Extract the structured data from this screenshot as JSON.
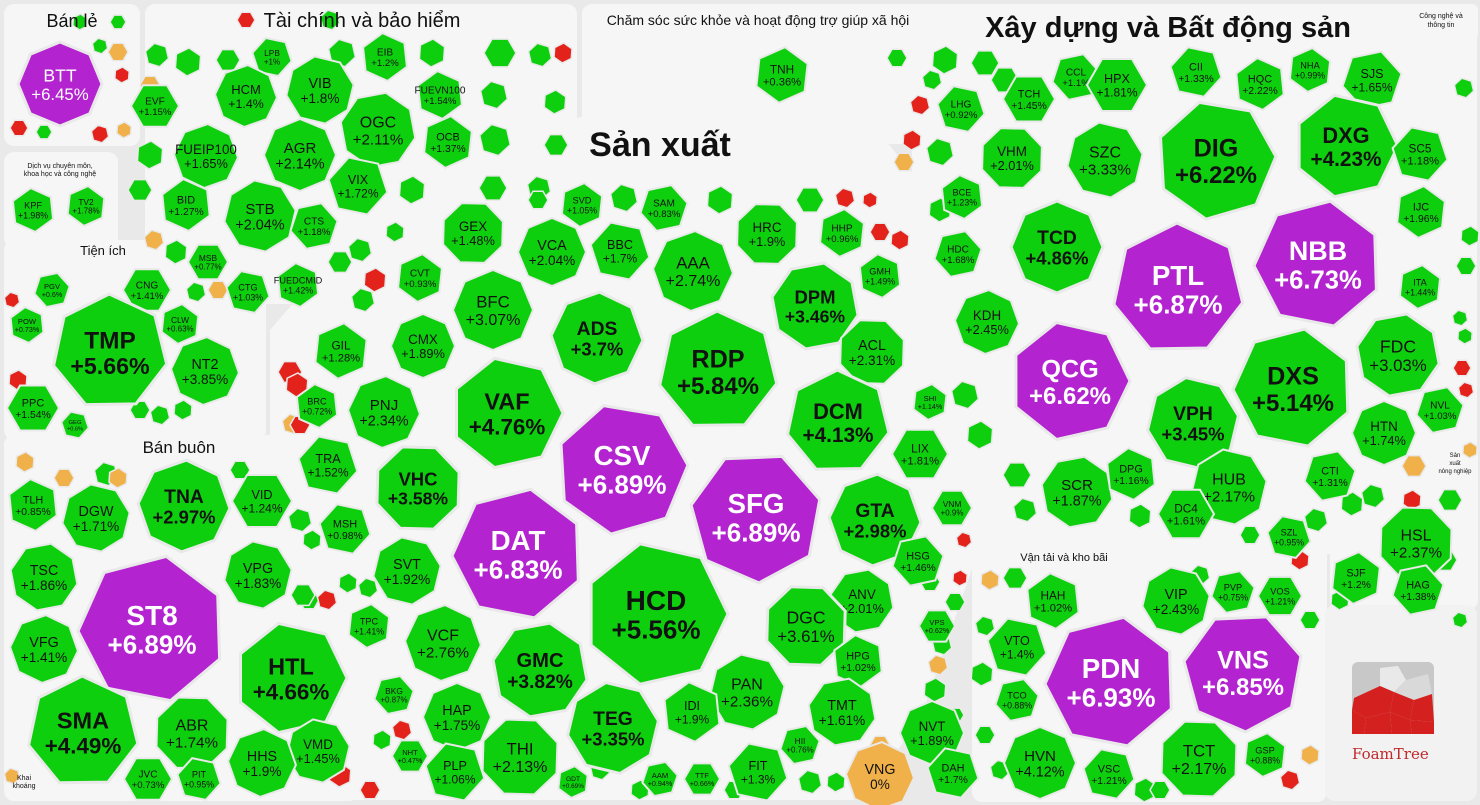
{
  "colors": {
    "up": "#0ecf0e",
    "up_light": "#19d41a",
    "ceiling": "#b323d0",
    "down": "#e3231b",
    "ref": "#f0b04a",
    "border": "#e9e9e9",
    "panel": "#f6f6f6"
  },
  "logo": {
    "text": "FoamTree"
  },
  "chart_data": {
    "type": "treemap",
    "sectors": [
      {
        "name": "Bán lẻ",
        "stocks": [
          {
            "t": "BTT",
            "v": 6.45
          }
        ]
      },
      {
        "name": "Tài chính và bảo hiểm",
        "stocks": [
          {
            "t": "LPB",
            "v": 1
          },
          {
            "t": "EIB",
            "v": 1.2
          },
          {
            "t": "VIB",
            "v": 1.8
          },
          {
            "t": "HCM",
            "v": 1.4
          },
          {
            "t": "EVF",
            "v": 1.15
          },
          {
            "t": "OGC",
            "v": 2.11
          },
          {
            "t": "FUEVN100",
            "v": 1.54
          },
          {
            "t": "OCB",
            "v": 1.37
          },
          {
            "t": "FUEIP100",
            "v": 1.65
          },
          {
            "t": "AGR",
            "v": 2.14
          },
          {
            "t": "VIX",
            "v": 1.72
          },
          {
            "t": "BID",
            "v": 1.27
          },
          {
            "t": "STB",
            "v": 2.04
          },
          {
            "t": "CTS",
            "v": 1.18
          },
          {
            "t": "MSB",
            "v": 0.77
          },
          {
            "t": "CTG",
            "v": 1.03
          },
          {
            "t": "FUEDCMID",
            "v": 1.42
          }
        ]
      },
      {
        "name": "Chăm sóc sức khỏe và hoạt động trợ giúp xã hội",
        "stocks": [
          {
            "t": "TNH",
            "v": 0.36
          }
        ]
      },
      {
        "name": "Xây dựng và Bất động sản",
        "stocks": [
          {
            "t": "CCL",
            "v": 1.1
          },
          {
            "t": "HPX",
            "v": 1.81
          },
          {
            "t": "CII",
            "v": 1.33
          },
          {
            "t": "HQC",
            "v": 2.22
          },
          {
            "t": "NHA",
            "v": 0.99
          },
          {
            "t": "SJS",
            "v": 1.65
          },
          {
            "t": "TCH",
            "v": 1.45
          },
          {
            "t": "LHG",
            "v": 0.92
          },
          {
            "t": "VHM",
            "v": 2.01
          },
          {
            "t": "SZC",
            "v": 3.33
          },
          {
            "t": "DIG",
            "v": 6.22
          },
          {
            "t": "DXG",
            "v": 4.23
          },
          {
            "t": "SC5",
            "v": 1.18
          },
          {
            "t": "BCE",
            "v": 1.23
          },
          {
            "t": "IJC",
            "v": 1.96
          },
          {
            "t": "HDC",
            "v": 1.68
          },
          {
            "t": "TCD",
            "v": 4.86
          },
          {
            "t": "PTL",
            "v": 6.87
          },
          {
            "t": "NBB",
            "v": 6.73
          },
          {
            "t": "ITA",
            "v": 1.44
          },
          {
            "t": "KDH",
            "v": 2.45
          },
          {
            "t": "QCG",
            "v": 6.62
          },
          {
            "t": "FDC",
            "v": 3.03
          },
          {
            "t": "DXS",
            "v": 5.14
          },
          {
            "t": "VPH",
            "v": 3.45
          },
          {
            "t": "NVL",
            "v": 1.03
          },
          {
            "t": "HTN",
            "v": 1.74
          },
          {
            "t": "SCR",
            "v": 1.87
          },
          {
            "t": "DPG",
            "v": 1.16
          },
          {
            "t": "HUB",
            "v": 2.17
          },
          {
            "t": "CTI",
            "v": 1.31
          },
          {
            "t": "DC4",
            "v": 1.61
          },
          {
            "t": "SZL",
            "v": 0.95
          }
        ]
      },
      {
        "name": "Sản xuất",
        "stocks": [
          {
            "t": "GEX",
            "v": 1.48
          },
          {
            "t": "SVD",
            "v": 1.05
          },
          {
            "t": "SAM",
            "v": 0.83
          },
          {
            "t": "VCA",
            "v": 2.04
          },
          {
            "t": "BBC",
            "v": 1.7
          },
          {
            "t": "HRC",
            "v": 1.9
          },
          {
            "t": "HHP",
            "v": 0.96
          },
          {
            "t": "AAA",
            "v": 2.74
          },
          {
            "t": "BFC",
            "v": 3.07
          },
          {
            "t": "DPM",
            "v": 3.46
          },
          {
            "t": "GMH",
            "v": 1.49
          },
          {
            "t": "CVT",
            "v": 0.93
          },
          {
            "t": "ADS",
            "v": 3.7
          },
          {
            "t": "CMX",
            "v": 1.89
          },
          {
            "t": "RDP",
            "v": 5.84
          },
          {
            "t": "ACL",
            "v": 2.31
          },
          {
            "t": "GIL",
            "v": 1.28
          },
          {
            "t": "PNJ",
            "v": 2.34
          },
          {
            "t": "VAF",
            "v": 4.76
          },
          {
            "t": "DCM",
            "v": 4.13
          },
          {
            "t": "BRC",
            "v": 0.72
          },
          {
            "t": "SHI",
            "v": 1.14
          },
          {
            "t": "CSV",
            "v": 6.89
          },
          {
            "t": "LIX",
            "v": 1.81
          },
          {
            "t": "TRA",
            "v": 1.52
          },
          {
            "t": "VHC",
            "v": 3.58
          },
          {
            "t": "SFG",
            "v": 6.89
          },
          {
            "t": "GTA",
            "v": 2.98
          },
          {
            "t": "VNM",
            "v": 0.9
          },
          {
            "t": "MSH",
            "v": 0.98
          },
          {
            "t": "DAT",
            "v": 6.83
          },
          {
            "t": "SVT",
            "v": 1.92
          },
          {
            "t": "HSG",
            "v": 1.46
          },
          {
            "t": "HCD",
            "v": 5.56
          },
          {
            "t": "ANV",
            "v": 2.01
          },
          {
            "t": "DGC",
            "v": 3.61
          },
          {
            "t": "TPC",
            "v": 1.41
          },
          {
            "t": "VCF",
            "v": 2.76
          },
          {
            "t": "VPS",
            "v": 0.62
          },
          {
            "t": "GMC",
            "v": 3.82
          },
          {
            "t": "HPG",
            "v": 1.02
          },
          {
            "t": "PAN",
            "v": 2.36
          },
          {
            "t": "BKG",
            "v": 0.87
          },
          {
            "t": "HAP",
            "v": 1.75
          },
          {
            "t": "TMT",
            "v": 1.61
          },
          {
            "t": "IDI",
            "v": 1.9
          },
          {
            "t": "TEG",
            "v": 3.35
          },
          {
            "t": "HII",
            "v": 0.76
          },
          {
            "t": "NHT",
            "v": 0.47
          },
          {
            "t": "PLP",
            "v": 1.06
          },
          {
            "t": "THI",
            "v": 2.13
          },
          {
            "t": "GDT",
            "v": 0.69
          },
          {
            "t": "AAM",
            "v": 0.94
          },
          {
            "t": "TTF",
            "v": 0.66
          },
          {
            "t": "FIT",
            "v": 1.3
          }
        ]
      },
      {
        "name": "Dịch vụ chuyên môn, khoa học và công nghệ",
        "stocks": [
          {
            "t": "KPF",
            "v": 1.98
          },
          {
            "t": "TV2",
            "v": 1.78
          }
        ]
      },
      {
        "name": "Tiện ích",
        "stocks": [
          {
            "t": "PGV",
            "v": 0.6
          },
          {
            "t": "CNG",
            "v": 1.41
          },
          {
            "t": "TMP",
            "v": 5.66
          },
          {
            "t": "POW",
            "v": 0.73
          },
          {
            "t": "CLW",
            "v": 0.63
          },
          {
            "t": "NT2",
            "v": 3.85
          },
          {
            "t": "PPC",
            "v": 1.54
          },
          {
            "t": "GEG",
            "v": 0.6
          }
        ]
      },
      {
        "name": "Bán buôn",
        "stocks": [
          {
            "t": "TLH",
            "v": 0.85
          },
          {
            "t": "DGW",
            "v": 1.71
          },
          {
            "t": "TNA",
            "v": 2.97
          },
          {
            "t": "VID",
            "v": 1.24
          },
          {
            "t": "TSC",
            "v": 1.86
          },
          {
            "t": "ST8",
            "v": 6.89
          },
          {
            "t": "VPG",
            "v": 1.83
          },
          {
            "t": "VFG",
            "v": 1.41
          },
          {
            "t": "HTL",
            "v": 4.66
          },
          {
            "t": "SMA",
            "v": 4.49
          },
          {
            "t": "ABR",
            "v": 1.74
          },
          {
            "t": "VMD",
            "v": 1.45
          },
          {
            "t": "HHS",
            "v": 1.9
          },
          {
            "t": "JVC",
            "v": 0.73
          },
          {
            "t": "PIT",
            "v": 0.95
          }
        ]
      },
      {
        "name": "Công nghệ và thông tin",
        "stocks": []
      },
      {
        "name": "Vận tải và kho bãi",
        "stocks": [
          {
            "t": "HAH",
            "v": 1.02
          },
          {
            "t": "VIP",
            "v": 2.43
          },
          {
            "t": "PVP",
            "v": 0.75
          },
          {
            "t": "VOS",
            "v": 1.21
          },
          {
            "t": "VTO",
            "v": 1.4
          },
          {
            "t": "PDN",
            "v": 6.93
          },
          {
            "t": "VNS",
            "v": 6.85
          },
          {
            "t": "TCO",
            "v": 0.88
          },
          {
            "t": "HVN",
            "v": 4.12
          },
          {
            "t": "VSC",
            "v": 1.21
          },
          {
            "t": "TCT",
            "v": 2.17
          },
          {
            "t": "GSP",
            "v": 0.88
          },
          {
            "t": "VNG",
            "v": 0
          },
          {
            "t": "NVT",
            "v": 1.89
          },
          {
            "t": "DAH",
            "v": 1.7
          }
        ]
      },
      {
        "name": "Sản xuất nông nghiệp",
        "stocks": [
          {
            "t": "HSL",
            "v": 2.37
          },
          {
            "t": "SJF",
            "v": 1.2
          },
          {
            "t": "HAG",
            "v": 1.38
          }
        ]
      },
      {
        "name": "Khai khoáng",
        "stocks": []
      }
    ],
    "labels": {
      "titles": [
        {
          "id": "ban-le",
          "text": "Bán lẻ"
        },
        {
          "id": "tai-chinh",
          "text": "Tài chính và bảo hiểm"
        },
        {
          "id": "y-te",
          "text": "Chăm sóc sức khỏe và hoạt động trợ giúp xã hội"
        },
        {
          "id": "xay-dung",
          "text": "Xây dựng và Bất động sản"
        },
        {
          "id": "cong-nghe-1",
          "text": "Công nghệ và"
        },
        {
          "id": "cong-nghe-2",
          "text": "thông tin"
        },
        {
          "id": "san-xuat",
          "text": "Sản xuất"
        },
        {
          "id": "dich-vu-1",
          "text": "Dịch vụ chuyên môn,"
        },
        {
          "id": "dich-vu-2",
          "text": "khoa học và công nghệ"
        },
        {
          "id": "tien-ich",
          "text": "Tiện ích"
        },
        {
          "id": "ban-buon",
          "text": "Bán buôn"
        },
        {
          "id": "van-tai",
          "text": "Vận tải và kho bãi"
        },
        {
          "id": "nong-nghiep-1",
          "text": "Sản"
        },
        {
          "id": "nong-nghiep-2",
          "text": "xuất"
        },
        {
          "id": "nong-nghiep-3",
          "text": "nông nghiệp"
        },
        {
          "id": "khai-khoang-1",
          "text": "Khai"
        },
        {
          "id": "khai-khoang-2",
          "text": "khoáng"
        }
      ]
    },
    "legend": "none"
  }
}
